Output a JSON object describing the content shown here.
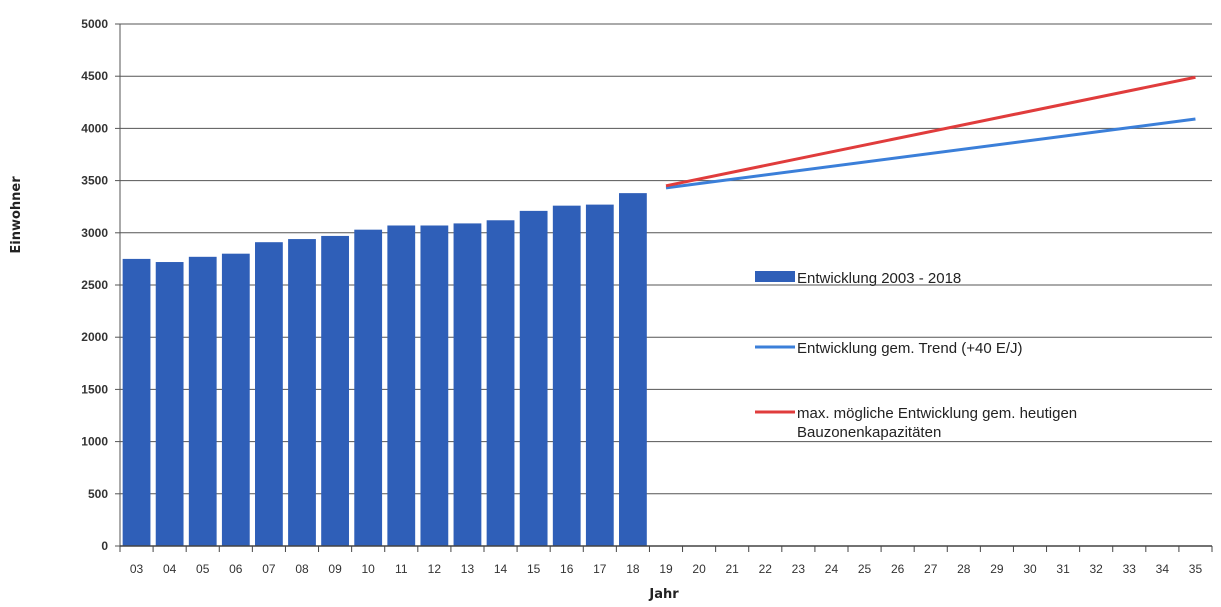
{
  "chart_data": {
    "type": "bar",
    "xlabel": "Jahr",
    "ylabel": "Einwohner",
    "ylim": [
      0,
      5000
    ],
    "yticks": [
      0,
      500,
      1000,
      1500,
      2000,
      2500,
      3000,
      3500,
      4000,
      4500,
      5000
    ],
    "categories": [
      "03",
      "04",
      "05",
      "06",
      "07",
      "08",
      "09",
      "10",
      "11",
      "12",
      "13",
      "14",
      "15",
      "16",
      "17",
      "18",
      "19",
      "20",
      "21",
      "22",
      "23",
      "24",
      "25",
      "26",
      "27",
      "28",
      "29",
      "30",
      "31",
      "32",
      "33",
      "34",
      "35"
    ],
    "grid": true,
    "legend_position": "right",
    "series": [
      {
        "name": "Entwicklung 2003 - 2018",
        "kind": "bar",
        "color": "#2f5fb8",
        "x": [
          "03",
          "04",
          "05",
          "06",
          "07",
          "08",
          "09",
          "10",
          "11",
          "12",
          "13",
          "14",
          "15",
          "16",
          "17",
          "18"
        ],
        "values": [
          2750,
          2720,
          2770,
          2800,
          2910,
          2940,
          2970,
          3030,
          3070,
          3070,
          3090,
          3120,
          3210,
          3260,
          3270,
          3380
        ]
      },
      {
        "name": "Entwicklung gem. Trend (+40 E/J)",
        "kind": "line",
        "color": "#3b7fd9",
        "x": [
          "19",
          "35"
        ],
        "values": [
          3430,
          4090
        ]
      },
      {
        "name": "max. mögliche Entwicklung gem. heutigen Bauzonenkapazitäten",
        "kind": "line",
        "color": "#e03c3c",
        "x": [
          "19",
          "35"
        ],
        "values": [
          3450,
          4490
        ]
      }
    ],
    "legend": [
      {
        "label": "Entwicklung 2003 - 2018",
        "marker": "bar",
        "color": "#2f5fb8"
      },
      {
        "label": "Entwicklung gem. Trend (+40 E/J)",
        "marker": "line",
        "color": "#3b7fd9"
      },
      {
        "label_lines": [
          "max. mögliche Entwicklung gem. heutigen",
          "Bauzonenkapazitäten"
        ],
        "marker": "line",
        "color": "#e03c3c"
      }
    ]
  }
}
